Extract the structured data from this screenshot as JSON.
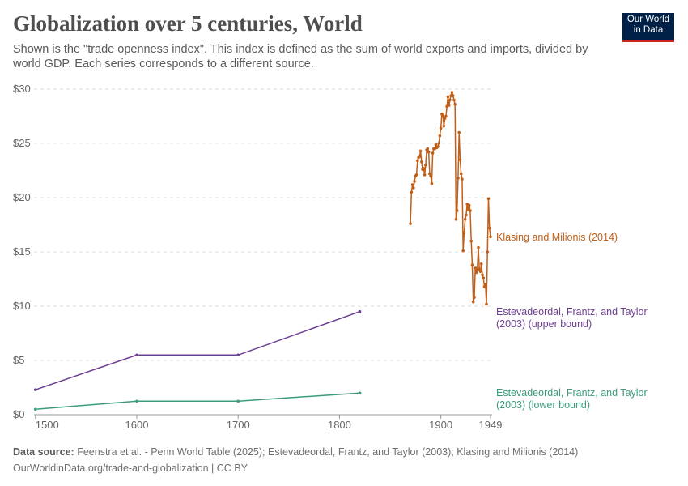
{
  "header": {
    "title": "Globalization over 5 centuries, World",
    "subtitle": "Shown is the \"trade openness index\". This index is defined as the sum of world exports and imports, divided by world GDP. Each series corresponds to a different source.",
    "logo": "Our World in Data"
  },
  "footer": {
    "source_label": "Data source:",
    "source_text": " Feenstra et al. - Penn World Table (2025); Estevadeordal, Frantz, and Taylor (2003); Klasing and Milionis (2014)",
    "url": "OurWorldinData.org/trade-and-globalization | CC BY"
  },
  "chart_data": {
    "type": "line",
    "xlim": [
      1500,
      1949
    ],
    "ylim": [
      0,
      30
    ],
    "x_ticks": [
      1500,
      1600,
      1700,
      1800,
      1900,
      1949
    ],
    "y_ticks": [
      0,
      5,
      10,
      15,
      20,
      25,
      30
    ],
    "y_tick_labels": [
      "$0",
      "$5",
      "$10",
      "$15",
      "$20",
      "$25",
      "$30"
    ],
    "grid": "horizontal dashed",
    "series": [
      {
        "name": "Klasing and Milionis (2014)",
        "color": "#c15f19",
        "x": [
          1870,
          1871,
          1872,
          1873,
          1874,
          1875,
          1876,
          1877,
          1878,
          1879,
          1880,
          1881,
          1882,
          1883,
          1884,
          1885,
          1886,
          1887,
          1888,
          1889,
          1890,
          1891,
          1892,
          1893,
          1894,
          1895,
          1896,
          1897,
          1898,
          1899,
          1900,
          1901,
          1902,
          1903,
          1904,
          1905,
          1906,
          1907,
          1908,
          1909,
          1910,
          1911,
          1912,
          1913,
          1914,
          1915,
          1916,
          1917,
          1918,
          1919,
          1920,
          1921,
          1922,
          1923,
          1924,
          1925,
          1926,
          1927,
          1928,
          1929,
          1930,
          1931,
          1932,
          1933,
          1934,
          1935,
          1936,
          1937,
          1938,
          1939,
          1940,
          1941,
          1942,
          1943,
          1944,
          1945,
          1946,
          1947,
          1948,
          1949
        ],
        "y": [
          17.6,
          20.5,
          21.2,
          20.9,
          21.5,
          22.0,
          22.1,
          23.4,
          23.7,
          23.8,
          24.3,
          23.3,
          22.6,
          22.7,
          22.1,
          23.0,
          24.4,
          24.5,
          24.2,
          22.2,
          22.0,
          21.3,
          24.1,
          24.5,
          24.5,
          24.9,
          24.6,
          24.7,
          25.0,
          25.7,
          26.4,
          27.7,
          27.6,
          26.6,
          27.3,
          27.5,
          28.4,
          29.3,
          28.5,
          29.0,
          29.4,
          29.7,
          29.4,
          29.0,
          28.6,
          18.0,
          18.8,
          21.8,
          26.0,
          23.5,
          22.2,
          21.7,
          15.1,
          16.8,
          18.0,
          18.4,
          19.4,
          18.9,
          19.3,
          18.8,
          16.0,
          13.8,
          10.4,
          10.8,
          13.5,
          13.1,
          13.5,
          15.4,
          13.4,
          13.2,
          13.9,
          12.9,
          12.6,
          11.8,
          12.0,
          10.2,
          15.0,
          19.9,
          17.2,
          16.4
        ]
      },
      {
        "name": "Estevadeordal, Frantz, and Taylor (2003) (upper bound)",
        "label_lines": [
          "Estevadeordal, Frantz, and Taylor",
          "(2003) (upper bound)"
        ],
        "color": "#6d3e91",
        "x": [
          1500,
          1600,
          1700,
          1820
        ],
        "y": [
          2.3,
          5.5,
          5.5,
          9.5
        ]
      },
      {
        "name": "Estevadeordal, Frantz, and Taylor (2003) (lower bound)",
        "label_lines": [
          "Estevadeordal, Frantz, and Taylor",
          "(2003) (lower bound)"
        ],
        "color": "#3b9c7c",
        "x": [
          1500,
          1600,
          1700,
          1820
        ],
        "y": [
          0.5,
          1.25,
          1.25,
          2.0
        ]
      }
    ]
  }
}
